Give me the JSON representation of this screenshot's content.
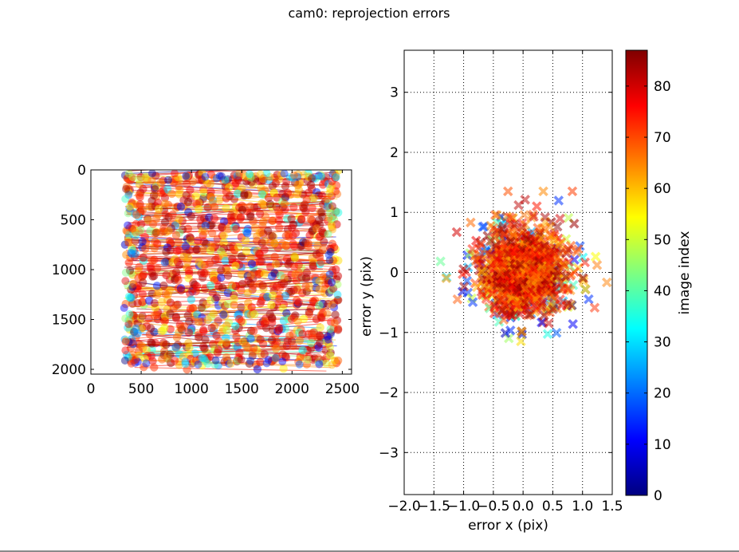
{
  "figure": {
    "title": "cam0: reprojection errors",
    "frame_color": "#000000",
    "background": "#ffffff"
  },
  "chart_data": [
    {
      "type": "scatter",
      "name": "image-points",
      "title": "",
      "xlabel": "",
      "ylabel": "",
      "xlim": [
        0,
        2592
      ],
      "ylim": [
        2048,
        0
      ],
      "xticks": [
        0,
        500,
        1000,
        1500,
        2000,
        2500
      ],
      "xtick_labels": [
        "0",
        "500",
        "1000",
        "1500",
        "2000",
        "2500"
      ],
      "yticks": [
        0,
        500,
        1000,
        1500,
        2000
      ],
      "ytick_labels": [
        "0",
        "500",
        "1000",
        "1500",
        "2000"
      ],
      "grid": false,
      "marker": "circle",
      "grid_corners": {
        "columns_x": [
          395,
          500,
          620,
          740,
          860,
          980,
          1100,
          1220,
          1340,
          1460,
          1580,
          1700,
          1820,
          1940,
          2060,
          2180,
          2300,
          2400
        ],
        "rows_y": [
          100,
          230,
          360,
          500,
          640,
          780,
          920,
          1060,
          1200,
          1340,
          1480,
          1620,
          1760,
          1900
        ],
        "x_range_observed": [
          330,
          2460
        ],
        "y_range_observed": [
          30,
          1960
        ]
      }
    },
    {
      "type": "scatter",
      "name": "reprojection-errors",
      "title": "",
      "xlabel": "error x (pix)",
      "ylabel": "error y (pix)",
      "xlim": [
        -2.0,
        1.5
      ],
      "ylim": [
        -3.7,
        3.7
      ],
      "xticks": [
        -2.0,
        -1.5,
        -1.0,
        -0.5,
        0.0,
        0.5,
        1.0,
        1.5
      ],
      "xtick_labels": [
        "−2.0",
        "−1.5",
        "−1.0",
        "−0.5",
        "0.0",
        "0.5",
        "1.0",
        "1.5"
      ],
      "yticks": [
        -3,
        -2,
        -1,
        0,
        1,
        2,
        3
      ],
      "ytick_labels": [
        "−3",
        "−2",
        "−1",
        "0",
        "1",
        "2",
        "3"
      ],
      "grid": true,
      "marker": "x",
      "error_cloud": {
        "center": [
          0.0,
          0.05
        ],
        "std": [
          0.42,
          0.4
        ],
        "x_range_observed": [
          -1.55,
          1.45
        ],
        "y_range_observed": [
          -1.35,
          1.35
        ]
      }
    },
    {
      "type": "colorbar",
      "name": "image-index-colorbar",
      "label": "image index",
      "colormap": "jet",
      "range": [
        0,
        87
      ],
      "ticks": [
        0,
        10,
        20,
        30,
        40,
        50,
        60,
        70,
        80
      ],
      "tick_labels": [
        "0",
        "10",
        "20",
        "30",
        "40",
        "50",
        "60",
        "70",
        "80"
      ],
      "colormap_stops": [
        "#00007f",
        "#0000ff",
        "#007fff",
        "#00ffff",
        "#7fff7f",
        "#ffff00",
        "#ff7f00",
        "#ff0000",
        "#7f0000"
      ]
    }
  ]
}
